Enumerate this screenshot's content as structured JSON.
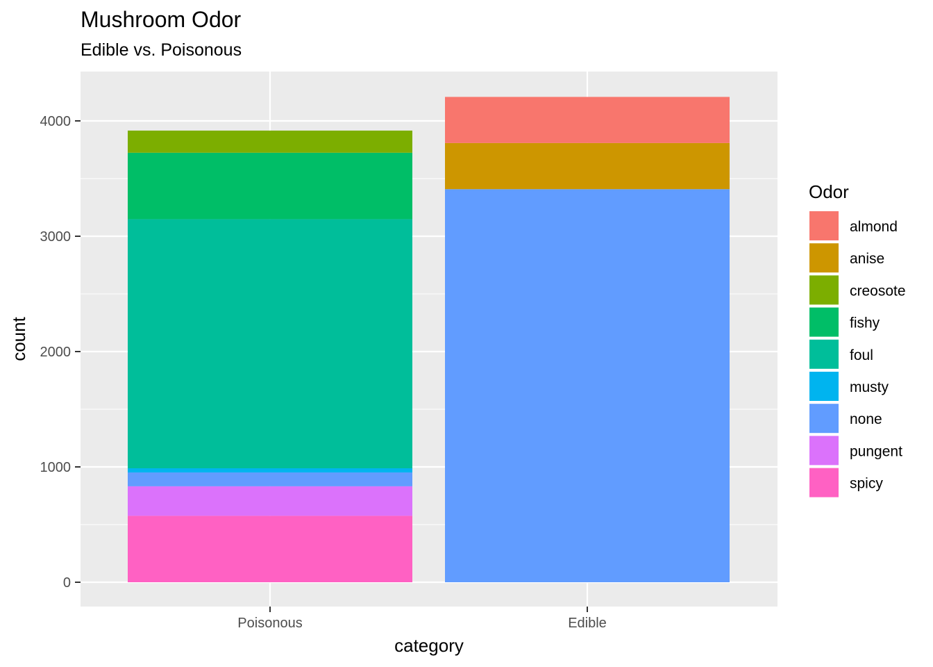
{
  "chart_data": {
    "type": "bar",
    "stacked": true,
    "title": "Mushroom Odor",
    "subtitle": "Edible vs. Poisonous",
    "xlabel": "category",
    "ylabel": "count",
    "ylim": [
      0,
      4380
    ],
    "yticks": [
      0,
      1000,
      2000,
      3000,
      4000
    ],
    "grid": true,
    "legend_position": "right",
    "legend_title": "Odor",
    "categories": [
      "Poisonous",
      "Edible"
    ],
    "series": [
      {
        "name": "almond",
        "color": "#F8766D",
        "values": [
          0,
          400
        ]
      },
      {
        "name": "anise",
        "color": "#CD9600",
        "values": [
          0,
          400
        ]
      },
      {
        "name": "creosote",
        "color": "#7CAE00",
        "values": [
          192,
          0
        ]
      },
      {
        "name": "fishy",
        "color": "#00BE67",
        "values": [
          576,
          0
        ]
      },
      {
        "name": "foul",
        "color": "#00BE9A",
        "values": [
          2160,
          0
        ]
      },
      {
        "name": "musty",
        "color": "#00B4EF",
        "values": [
          36,
          0
        ]
      },
      {
        "name": "none",
        "color": "#619CFF",
        "values": [
          120,
          3408
        ]
      },
      {
        "name": "pungent",
        "color": "#DB72FB",
        "values": [
          256,
          0
        ]
      },
      {
        "name": "spicy",
        "color": "#FF61C3",
        "values": [
          576,
          0
        ]
      }
    ]
  }
}
